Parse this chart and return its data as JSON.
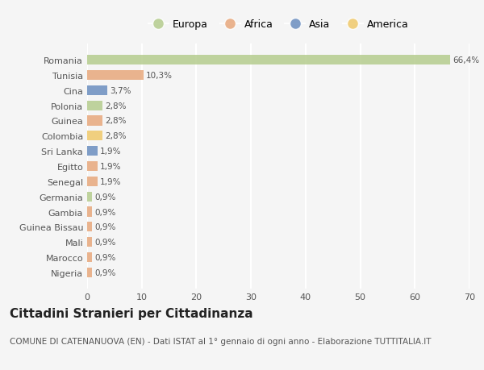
{
  "countries": [
    "Romania",
    "Tunisia",
    "Cina",
    "Polonia",
    "Guinea",
    "Colombia",
    "Sri Lanka",
    "Egitto",
    "Senegal",
    "Germania",
    "Gambia",
    "Guinea Bissau",
    "Mali",
    "Marocco",
    "Nigeria"
  ],
  "values": [
    66.4,
    10.3,
    3.7,
    2.8,
    2.8,
    2.8,
    1.9,
    1.9,
    1.9,
    0.9,
    0.9,
    0.9,
    0.9,
    0.9,
    0.9
  ],
  "labels": [
    "66,4%",
    "10,3%",
    "3,7%",
    "2,8%",
    "2,8%",
    "2,8%",
    "1,9%",
    "1,9%",
    "1,9%",
    "0,9%",
    "0,9%",
    "0,9%",
    "0,9%",
    "0,9%",
    "0,9%"
  ],
  "colors": [
    "#b5cc8e",
    "#e8a87c",
    "#6a8ebf",
    "#b5cc8e",
    "#e8a87c",
    "#f0c96a",
    "#6a8ebf",
    "#e8a87c",
    "#e8a87c",
    "#b5cc8e",
    "#e8a87c",
    "#e8a87c",
    "#e8a87c",
    "#e8a87c",
    "#e8a87c"
  ],
  "legend_labels": [
    "Europa",
    "Africa",
    "Asia",
    "America"
  ],
  "legend_colors": [
    "#b5cc8e",
    "#e8a87c",
    "#6a8ebf",
    "#f0c96a"
  ],
  "xlim": [
    0,
    70
  ],
  "xticks": [
    0,
    10,
    20,
    30,
    40,
    50,
    60,
    70
  ],
  "title": "Cittadini Stranieri per Cittadinanza",
  "subtitle": "COMUNE DI CATENANUOVA (EN) - Dati ISTAT al 1° gennaio di ogni anno - Elaborazione TUTTITALIA.IT",
  "bg_color": "#f5f5f5",
  "grid_color": "#ffffff",
  "bar_height": 0.65,
  "title_fontsize": 11,
  "subtitle_fontsize": 7.5,
  "label_fontsize": 7.5,
  "tick_fontsize": 8,
  "legend_fontsize": 9
}
